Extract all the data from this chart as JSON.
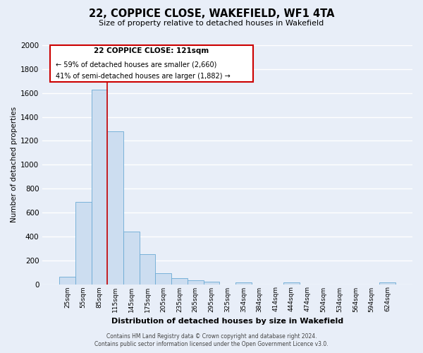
{
  "title": "22, COPPICE CLOSE, WAKEFIELD, WF1 4TA",
  "subtitle": "Size of property relative to detached houses in Wakefield",
  "xlabel": "Distribution of detached houses by size in Wakefield",
  "ylabel": "Number of detached properties",
  "categories": [
    "25sqm",
    "55sqm",
    "85sqm",
    "115sqm",
    "145sqm",
    "175sqm",
    "205sqm",
    "235sqm",
    "265sqm",
    "295sqm",
    "325sqm",
    "354sqm",
    "384sqm",
    "414sqm",
    "444sqm",
    "474sqm",
    "504sqm",
    "534sqm",
    "564sqm",
    "594sqm",
    "624sqm"
  ],
  "bar_values": [
    65,
    690,
    1630,
    1280,
    440,
    250,
    90,
    50,
    30,
    20,
    0,
    15,
    0,
    0,
    15,
    0,
    0,
    0,
    0,
    0,
    15
  ],
  "bar_color": "#ccddf0",
  "bar_edge_color": "#6aaad4",
  "annotation_title": "22 COPPICE CLOSE: 121sqm",
  "annotation_line1": "← 59% of detached houses are smaller (2,660)",
  "annotation_line2": "41% of semi-detached houses are larger (1,882) →",
  "vline_color": "#cc0000",
  "annotation_box_color": "#cc0000",
  "ylim": [
    0,
    2000
  ],
  "yticks": [
    0,
    200,
    400,
    600,
    800,
    1000,
    1200,
    1400,
    1600,
    1800,
    2000
  ],
  "background_color": "#e8eef8",
  "grid_color": "#ffffff",
  "footer_line1": "Contains HM Land Registry data © Crown copyright and database right 2024.",
  "footer_line2": "Contains public sector information licensed under the Open Government Licence v3.0."
}
